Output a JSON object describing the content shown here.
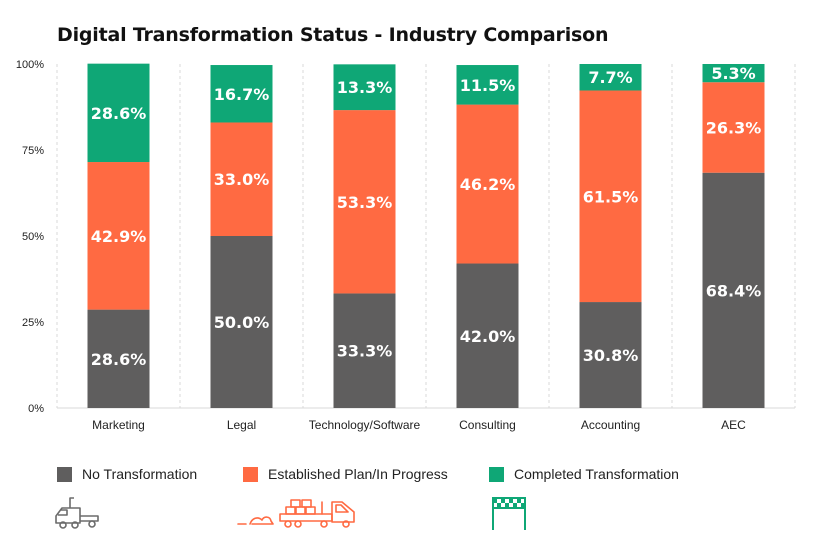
{
  "colors": {
    "no_transformation": "#5f5e5e",
    "in_progress": "#ff6a42",
    "completed": "#0fa776",
    "grid": "#d9d9d9",
    "label_on_light": "#111111",
    "label_on_dark": "#ffffff"
  },
  "chart_data": {
    "type": "bar",
    "stacked": true,
    "title": "Digital Transformation Status - Industry Comparison",
    "xlabel": "",
    "ylabel": "",
    "ylim": [
      0,
      100
    ],
    "yticks": [
      "0%",
      "25%",
      "50%",
      "75%",
      "100%"
    ],
    "categories": [
      "Marketing",
      "Legal",
      "Technology/Software",
      "Consulting",
      "Accounting",
      "AEC"
    ],
    "series": [
      {
        "name": "No Transformation",
        "values": [
          28.6,
          50.0,
          33.3,
          42.0,
          30.8,
          68.4
        ],
        "labels": [
          "28.6%",
          "50.0%",
          "33.3%",
          "42.0%",
          "30.8%",
          "68.4%"
        ]
      },
      {
        "name": "Established Plan/In Progress",
        "values": [
          42.9,
          33.0,
          53.3,
          46.2,
          61.5,
          26.3
        ],
        "labels": [
          "42.9%",
          "33.0%",
          "53.3%",
          "46.2%",
          "61.5%",
          "26.3%"
        ]
      },
      {
        "name": "Completed Transformation",
        "values": [
          28.6,
          16.7,
          13.3,
          11.5,
          7.7,
          5.3
        ],
        "labels": [
          "28.6%",
          "16.7%",
          "13.3%",
          "11.5%",
          "7.7%",
          "5.3%"
        ]
      }
    ],
    "grid": "vertical dashed separators",
    "legend_position": "bottom"
  },
  "legend": [
    {
      "label": "No Transformation",
      "icon": "parked-truck-icon"
    },
    {
      "label": "Established Plan/In Progress",
      "icon": "moving-truck-icon"
    },
    {
      "label": "Completed Transformation",
      "icon": "finish-line-icon"
    }
  ]
}
